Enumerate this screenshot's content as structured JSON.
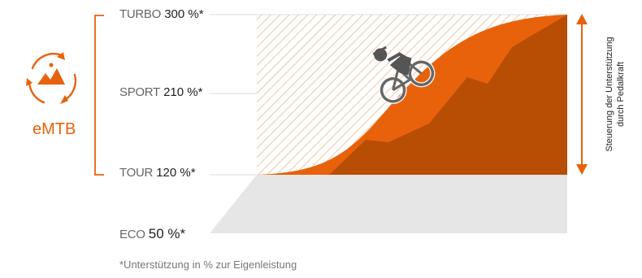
{
  "levels": [
    {
      "name": "TURBO",
      "value": "300 %*"
    },
    {
      "name": "SPORT",
      "value": "210 %*"
    },
    {
      "name": "TOUR",
      "value": "120 %*"
    },
    {
      "name": "ECO",
      "value": "50 %*"
    }
  ],
  "mode_badge": {
    "label": "eMTB",
    "icon": "emtb-cycle-icon"
  },
  "side_label": {
    "line1": "Steuerung der Unterstützung",
    "line2": "durch Pedalkraft"
  },
  "footnote": "*Unterstützung in % zur Eigenleistung",
  "rider_icon": "mountain-biker-icon",
  "colors": {
    "accent": "#e8620c",
    "dark_orange": "#b84e03",
    "hatch": "#f4c9a6",
    "eco_gray": "#e6e6e6",
    "guide": "#dcdcdc"
  }
}
